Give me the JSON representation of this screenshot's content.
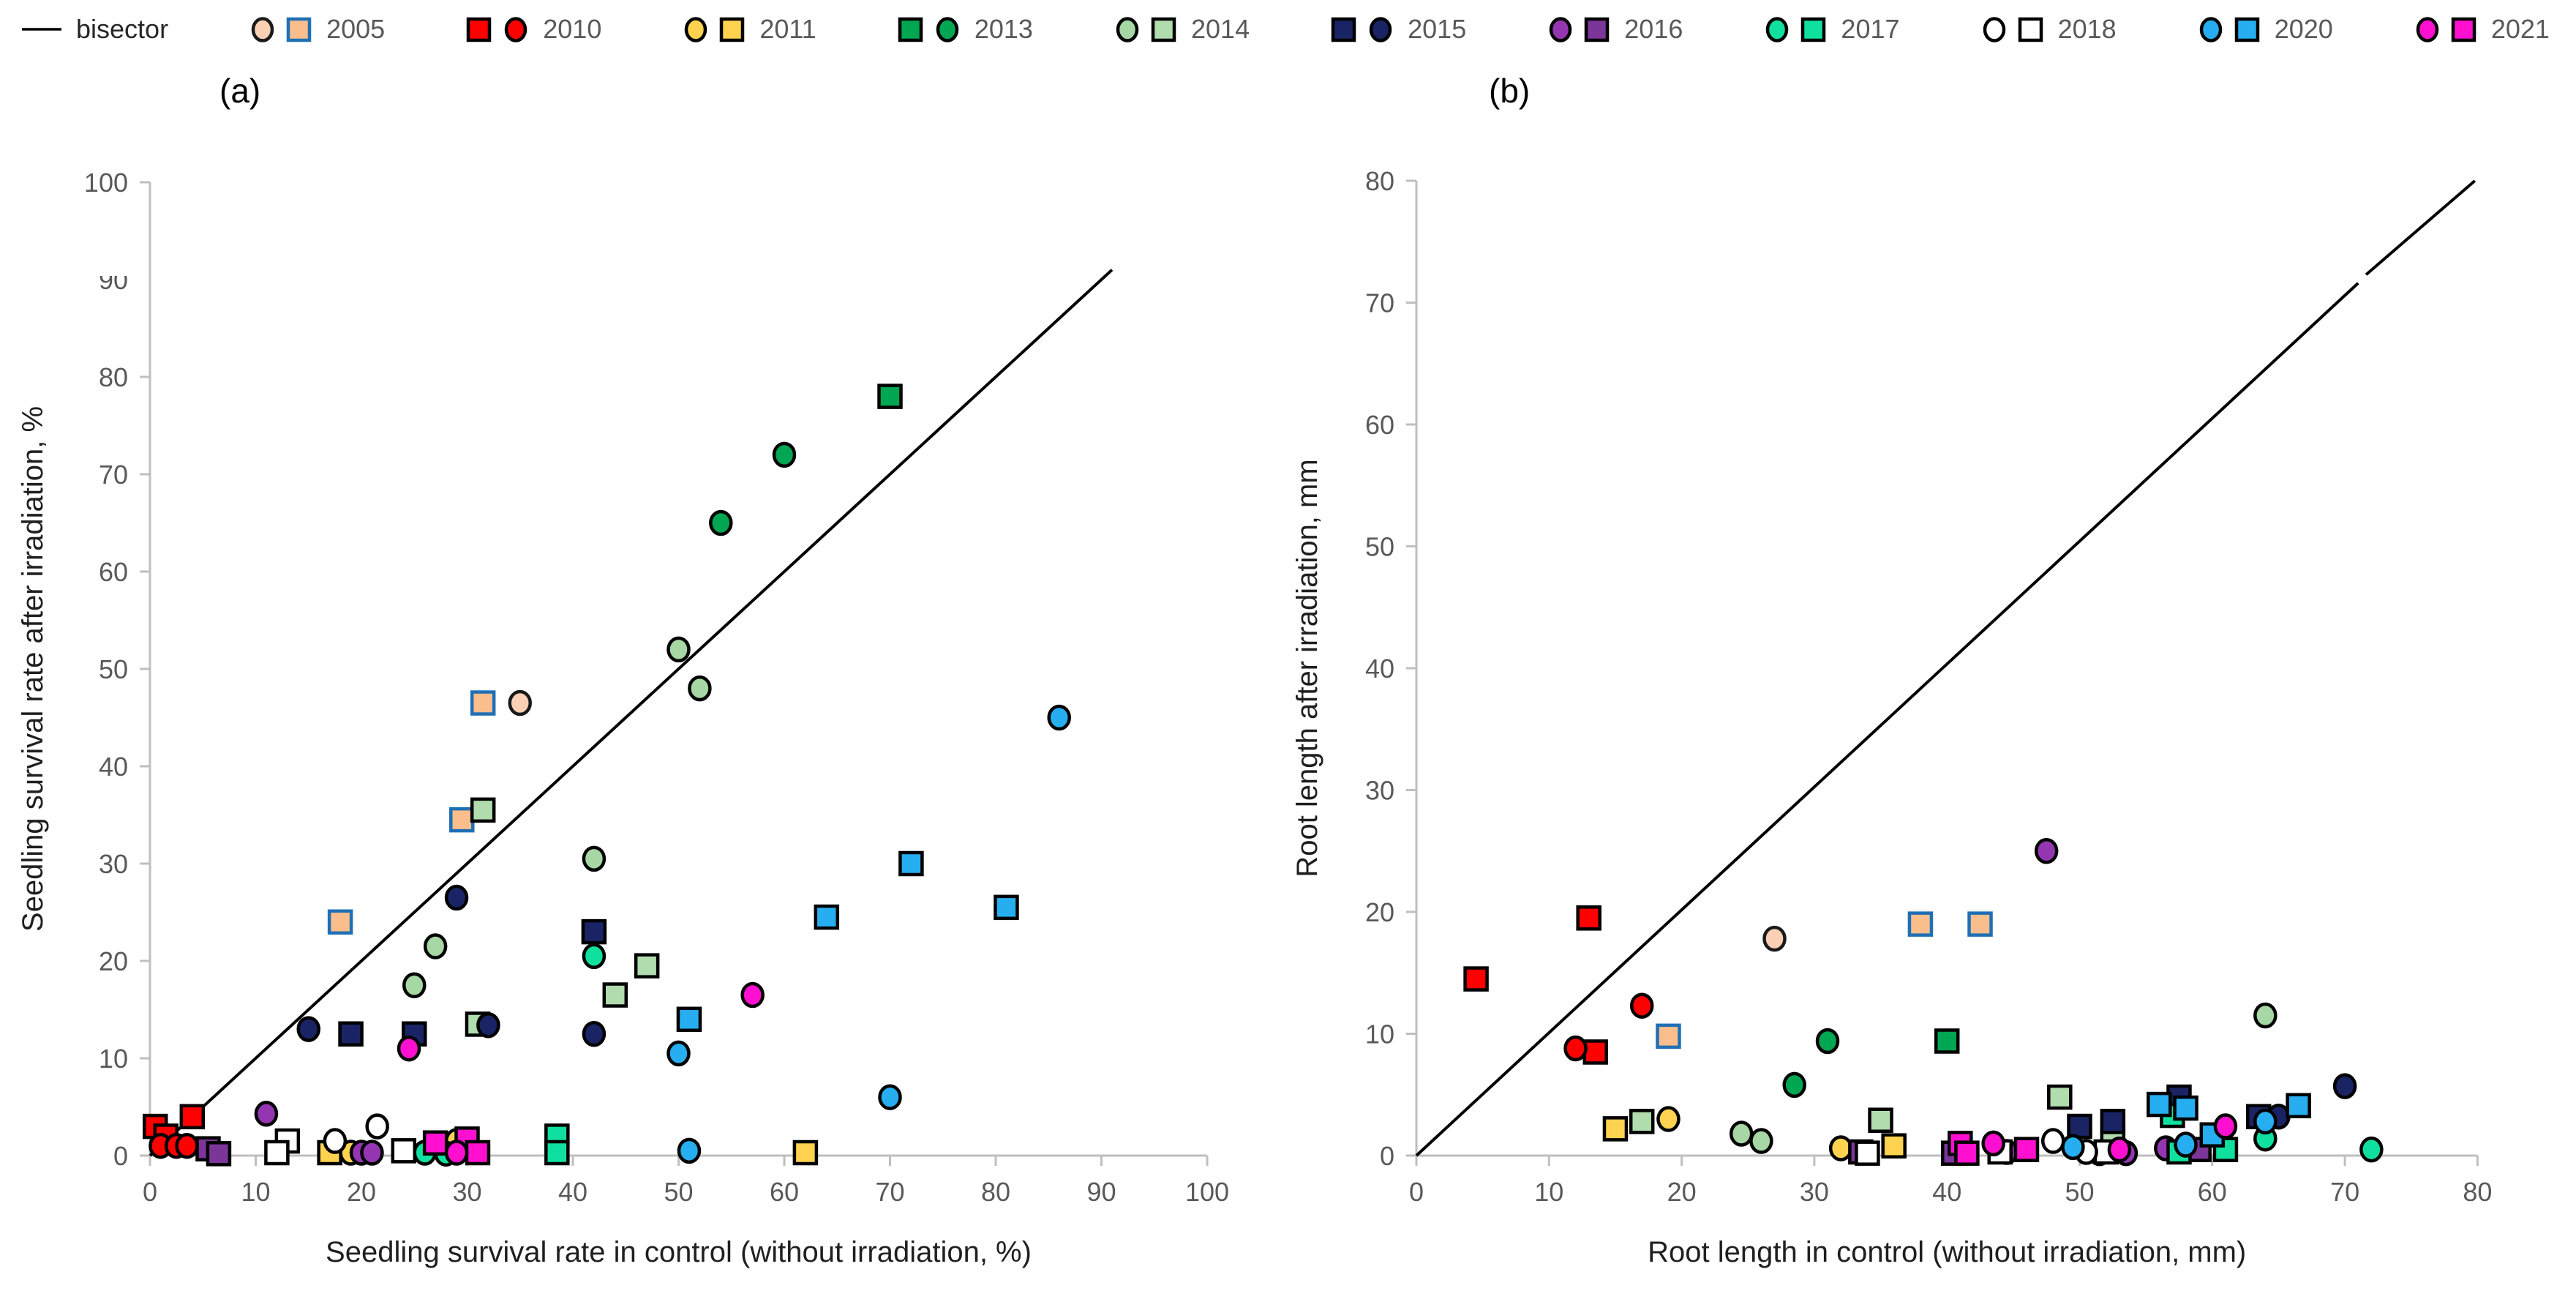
{
  "page": {
    "background": "#FFFFFF"
  },
  "styles": {
    "axis_color": "#BFBFBF",
    "tick_label_color": "#595959",
    "axis_title_color": "#1F1F1F",
    "panel_label_color": "#000000",
    "bisector_color": "#000000",
    "marker_stroke": "#000000",
    "legend_text_color": "#595959"
  },
  "legend": {
    "bisector_label": "bisector",
    "items": [
      {
        "year": "2005",
        "marker_order": [
          "circle",
          "square"
        ],
        "circle_fill": "#FBD0B5",
        "square_fill": "#F9BE8C",
        "circle_border": "#1A1A1A",
        "square_border": "#1F6FB5"
      },
      {
        "year": "2010",
        "marker_order": [
          "square",
          "circle"
        ],
        "circle_fill": "#FE0000",
        "square_fill": "#FE0000",
        "circle_border": "#000000",
        "square_border": "#000000"
      },
      {
        "year": "2011",
        "marker_order": [
          "circle",
          "square"
        ],
        "circle_fill": "#FFD34F",
        "square_fill": "#FFD34F",
        "circle_border": "#000000",
        "square_border": "#000000"
      },
      {
        "year": "2013",
        "marker_order": [
          "square",
          "circle"
        ],
        "circle_fill": "#00A651",
        "square_fill": "#00A651",
        "circle_border": "#000000",
        "square_border": "#000000"
      },
      {
        "year": "2014",
        "marker_order": [
          "circle",
          "square"
        ],
        "circle_fill": "#A6D7A4",
        "square_fill": "#B0DCAE",
        "circle_border": "#000000",
        "square_border": "#000000"
      },
      {
        "year": "2015",
        "marker_order": [
          "square",
          "circle"
        ],
        "circle_fill": "#1A2464",
        "square_fill": "#1A2464",
        "circle_border": "#000000",
        "square_border": "#000000"
      },
      {
        "year": "2016",
        "marker_order": [
          "circle",
          "square"
        ],
        "circle_fill": "#9436B2",
        "square_fill": "#7C3699",
        "circle_border": "#000000",
        "square_border": "#000000"
      },
      {
        "year": "2017",
        "marker_order": [
          "circle",
          "square"
        ],
        "circle_fill": "#0FE0A0",
        "square_fill": "#0FE0A0",
        "circle_border": "#000000",
        "square_border": "#000000"
      },
      {
        "year": "2018",
        "marker_order": [
          "circle",
          "square"
        ],
        "circle_fill": "#FFFFFF",
        "square_fill": "#FFFFFF",
        "circle_border": "#000000",
        "square_border": "#000000"
      },
      {
        "year": "2020",
        "marker_order": [
          "circle",
          "square"
        ],
        "circle_fill": "#27AEF0",
        "square_fill": "#27AEF0",
        "circle_border": "#000000",
        "square_border": "#000000"
      },
      {
        "year": "2021",
        "marker_order": [
          "circle",
          "square"
        ],
        "circle_fill": "#FF10D0",
        "square_fill": "#FF10D0",
        "circle_border": "#000000",
        "square_border": "#000000"
      }
    ]
  },
  "chart_data": [
    {
      "type": "scatter",
      "panel_label": "(a)",
      "xlabel": "Seedling survival rate in control (without irradiation, %)",
      "ylabel": "Seedling survival rate after irradiation, %",
      "xlim": [
        0,
        100
      ],
      "ylim": [
        0,
        100
      ],
      "xticks": [
        0,
        10,
        20,
        30,
        40,
        50,
        60,
        70,
        80,
        90,
        100
      ],
      "yticks": [
        0,
        10,
        20,
        30,
        40,
        50,
        60,
        70,
        80,
        100
      ],
      "ytick_partial": 90,
      "grid": false,
      "bisector_segments": [
        [
          [
            0,
            0
          ],
          [
            91,
            91
          ]
        ]
      ],
      "series": [
        {
          "year": "2005",
          "squares": [
            [
              18,
              24
            ],
            [
              29.5,
              34.5
            ],
            [
              31.5,
              46.5
            ]
          ],
          "circles": [
            [
              35,
              46.5
            ]
          ]
        },
        {
          "year": "2010",
          "squares": [
            [
              0.5,
              3
            ],
            [
              1.5,
              2
            ],
            [
              4,
              4
            ]
          ],
          "circles": [
            [
              1,
              1
            ],
            [
              2.5,
              1
            ],
            [
              3.5,
              1
            ]
          ]
        },
        {
          "year": "2011",
          "squares": [
            [
              17,
              0.3
            ],
            [
              62,
              0.3
            ]
          ],
          "circles": [
            [
              19,
              0.3
            ],
            [
              29,
              1.5
            ]
          ]
        },
        {
          "year": "2013",
          "squares": [
            [
              70,
              78
            ]
          ],
          "circles": [
            [
              60,
              72
            ],
            [
              54,
              65
            ]
          ]
        },
        {
          "year": "2014",
          "squares": [
            [
              31.5,
              35.5
            ],
            [
              47,
              19.5
            ],
            [
              44,
              16.5
            ],
            [
              31,
              13.5
            ]
          ],
          "circles": [
            [
              50,
              52
            ],
            [
              52,
              48
            ],
            [
              42,
              30.5
            ],
            [
              27,
              21.5
            ],
            [
              25,
              17.5
            ]
          ]
        },
        {
          "year": "2015",
          "squares": [
            [
              42,
              23
            ],
            [
              19,
              12.5
            ],
            [
              25,
              12.5
            ]
          ],
          "circles": [
            [
              29,
              26.5
            ],
            [
              15,
              13
            ],
            [
              32,
              13.4
            ],
            [
              42,
              12.5
            ]
          ]
        },
        {
          "year": "2016",
          "squares": [
            [
              5.5,
              0.7
            ],
            [
              6.5,
              0.2
            ]
          ],
          "circles": [
            [
              11,
              4.3
            ],
            [
              20,
              0.3
            ],
            [
              21,
              0.3
            ]
          ]
        },
        {
          "year": "2017",
          "squares": [
            [
              38.5,
              2
            ],
            [
              38.5,
              0.3
            ]
          ],
          "circles": [
            [
              42,
              20.5
            ],
            [
              26,
              0.3
            ],
            [
              28,
              0.2
            ]
          ]
        },
        {
          "year": "2018",
          "squares": [
            [
              13,
              1.5
            ],
            [
              12,
              0.3
            ],
            [
              24,
              0.5
            ]
          ],
          "circles": [
            [
              17.5,
              1.5
            ],
            [
              21.5,
              3
            ]
          ]
        },
        {
          "year": "2020",
          "squares": [
            [
              72,
              30
            ],
            [
              64,
              24.5
            ],
            [
              81,
              25.5
            ],
            [
              51,
              14
            ]
          ],
          "circles": [
            [
              86,
              45
            ],
            [
              70,
              6
            ],
            [
              50,
              10.5
            ],
            [
              51,
              0.5
            ]
          ]
        },
        {
          "year": "2021",
          "squares": [
            [
              27,
              1.3
            ],
            [
              30,
              1.7
            ],
            [
              31,
              0.3
            ]
          ],
          "circles": [
            [
              24.5,
              11
            ],
            [
              29,
              0.3
            ],
            [
              57,
              16.5
            ]
          ]
        }
      ]
    },
    {
      "type": "scatter",
      "panel_label": "(b)",
      "xlabel": "Root length in control (without irradiation, mm)",
      "ylabel": "Root length after irradiation, mm",
      "xlim": [
        0,
        80
      ],
      "ylim": [
        0,
        80
      ],
      "xticks": [
        0,
        10,
        20,
        30,
        40,
        50,
        60,
        70,
        80
      ],
      "yticks": [
        0,
        10,
        20,
        30,
        40,
        50,
        60,
        70,
        80
      ],
      "grid": false,
      "bisector_segments": [
        [
          [
            0,
            0
          ],
          [
            71,
            71.6
          ]
        ],
        [
          [
            71.6,
            72.3
          ],
          [
            79.8,
            80
          ]
        ]
      ],
      "series": [
        {
          "year": "2005",
          "squares": [
            [
              19,
              9.8
            ],
            [
              38,
              19
            ],
            [
              42.5,
              19
            ]
          ],
          "circles": [
            [
              27,
              17.8
            ]
          ]
        },
        {
          "year": "2010",
          "squares": [
            [
              4.5,
              14.5
            ],
            [
              13,
              19.5
            ],
            [
              13.5,
              8.5
            ]
          ],
          "circles": [
            [
              12,
              8.8
            ],
            [
              17,
              12.3
            ]
          ]
        },
        {
          "year": "2011",
          "squares": [
            [
              15,
              2.2
            ],
            [
              36,
              0.8
            ]
          ],
          "circles": [
            [
              19,
              3
            ],
            [
              32,
              0.6
            ]
          ]
        },
        {
          "year": "2013",
          "squares": [
            [
              40,
              9.4
            ]
          ],
          "circles": [
            [
              31,
              9.4
            ],
            [
              28.5,
              5.8
            ]
          ]
        },
        {
          "year": "2014",
          "squares": [
            [
              17,
              2.8
            ],
            [
              35,
              2.9
            ],
            [
              48.5,
              4.8
            ],
            [
              52.5,
              1.3
            ]
          ],
          "circles": [
            [
              24.5,
              1.8
            ],
            [
              26,
              1.2
            ],
            [
              64,
              11.5
            ]
          ]
        },
        {
          "year": "2015",
          "squares": [
            [
              50,
              2.4
            ],
            [
              52.5,
              2.8
            ],
            [
              57.5,
              4.8
            ],
            [
              63.5,
              3.2
            ]
          ],
          "circles": [
            [
              70,
              5.7
            ],
            [
              65,
              3.2
            ]
          ]
        },
        {
          "year": "2016",
          "squares": [
            [
              59,
              0.5
            ],
            [
              33.5,
              0.3
            ],
            [
              40.5,
              0.2
            ]
          ],
          "circles": [
            [
              47.5,
              25
            ],
            [
              56.5,
              0.6
            ],
            [
              44.5,
              0.3
            ],
            [
              53.5,
              0.2
            ]
          ]
        },
        {
          "year": "2017",
          "squares": [
            [
              57,
              3.3
            ],
            [
              57.5,
              0.3
            ],
            [
              61,
              0.5
            ]
          ],
          "circles": [
            [
              64,
              1.4
            ],
            [
              72,
              0.5
            ],
            [
              51.5,
              0.2
            ]
          ]
        },
        {
          "year": "2018",
          "squares": [
            [
              34,
              0.2
            ],
            [
              44,
              0.3
            ],
            [
              52,
              0.3
            ]
          ],
          "circles": [
            [
              48,
              1.2
            ],
            [
              50.5,
              0.3
            ]
          ]
        },
        {
          "year": "2020",
          "squares": [
            [
              56,
              4.2
            ],
            [
              58,
              3.9
            ],
            [
              60,
              1.7
            ],
            [
              66.5,
              4.1
            ]
          ],
          "circles": [
            [
              58,
              0.9
            ],
            [
              64,
              2.8
            ],
            [
              49.5,
              0.7
            ]
          ]
        },
        {
          "year": "2021",
          "squares": [
            [
              41,
              1
            ],
            [
              41.5,
              0.2
            ],
            [
              46,
              0.5
            ]
          ],
          "circles": [
            [
              43.5,
              1
            ],
            [
              53,
              0.5
            ],
            [
              61,
              2.4
            ]
          ]
        }
      ]
    }
  ]
}
